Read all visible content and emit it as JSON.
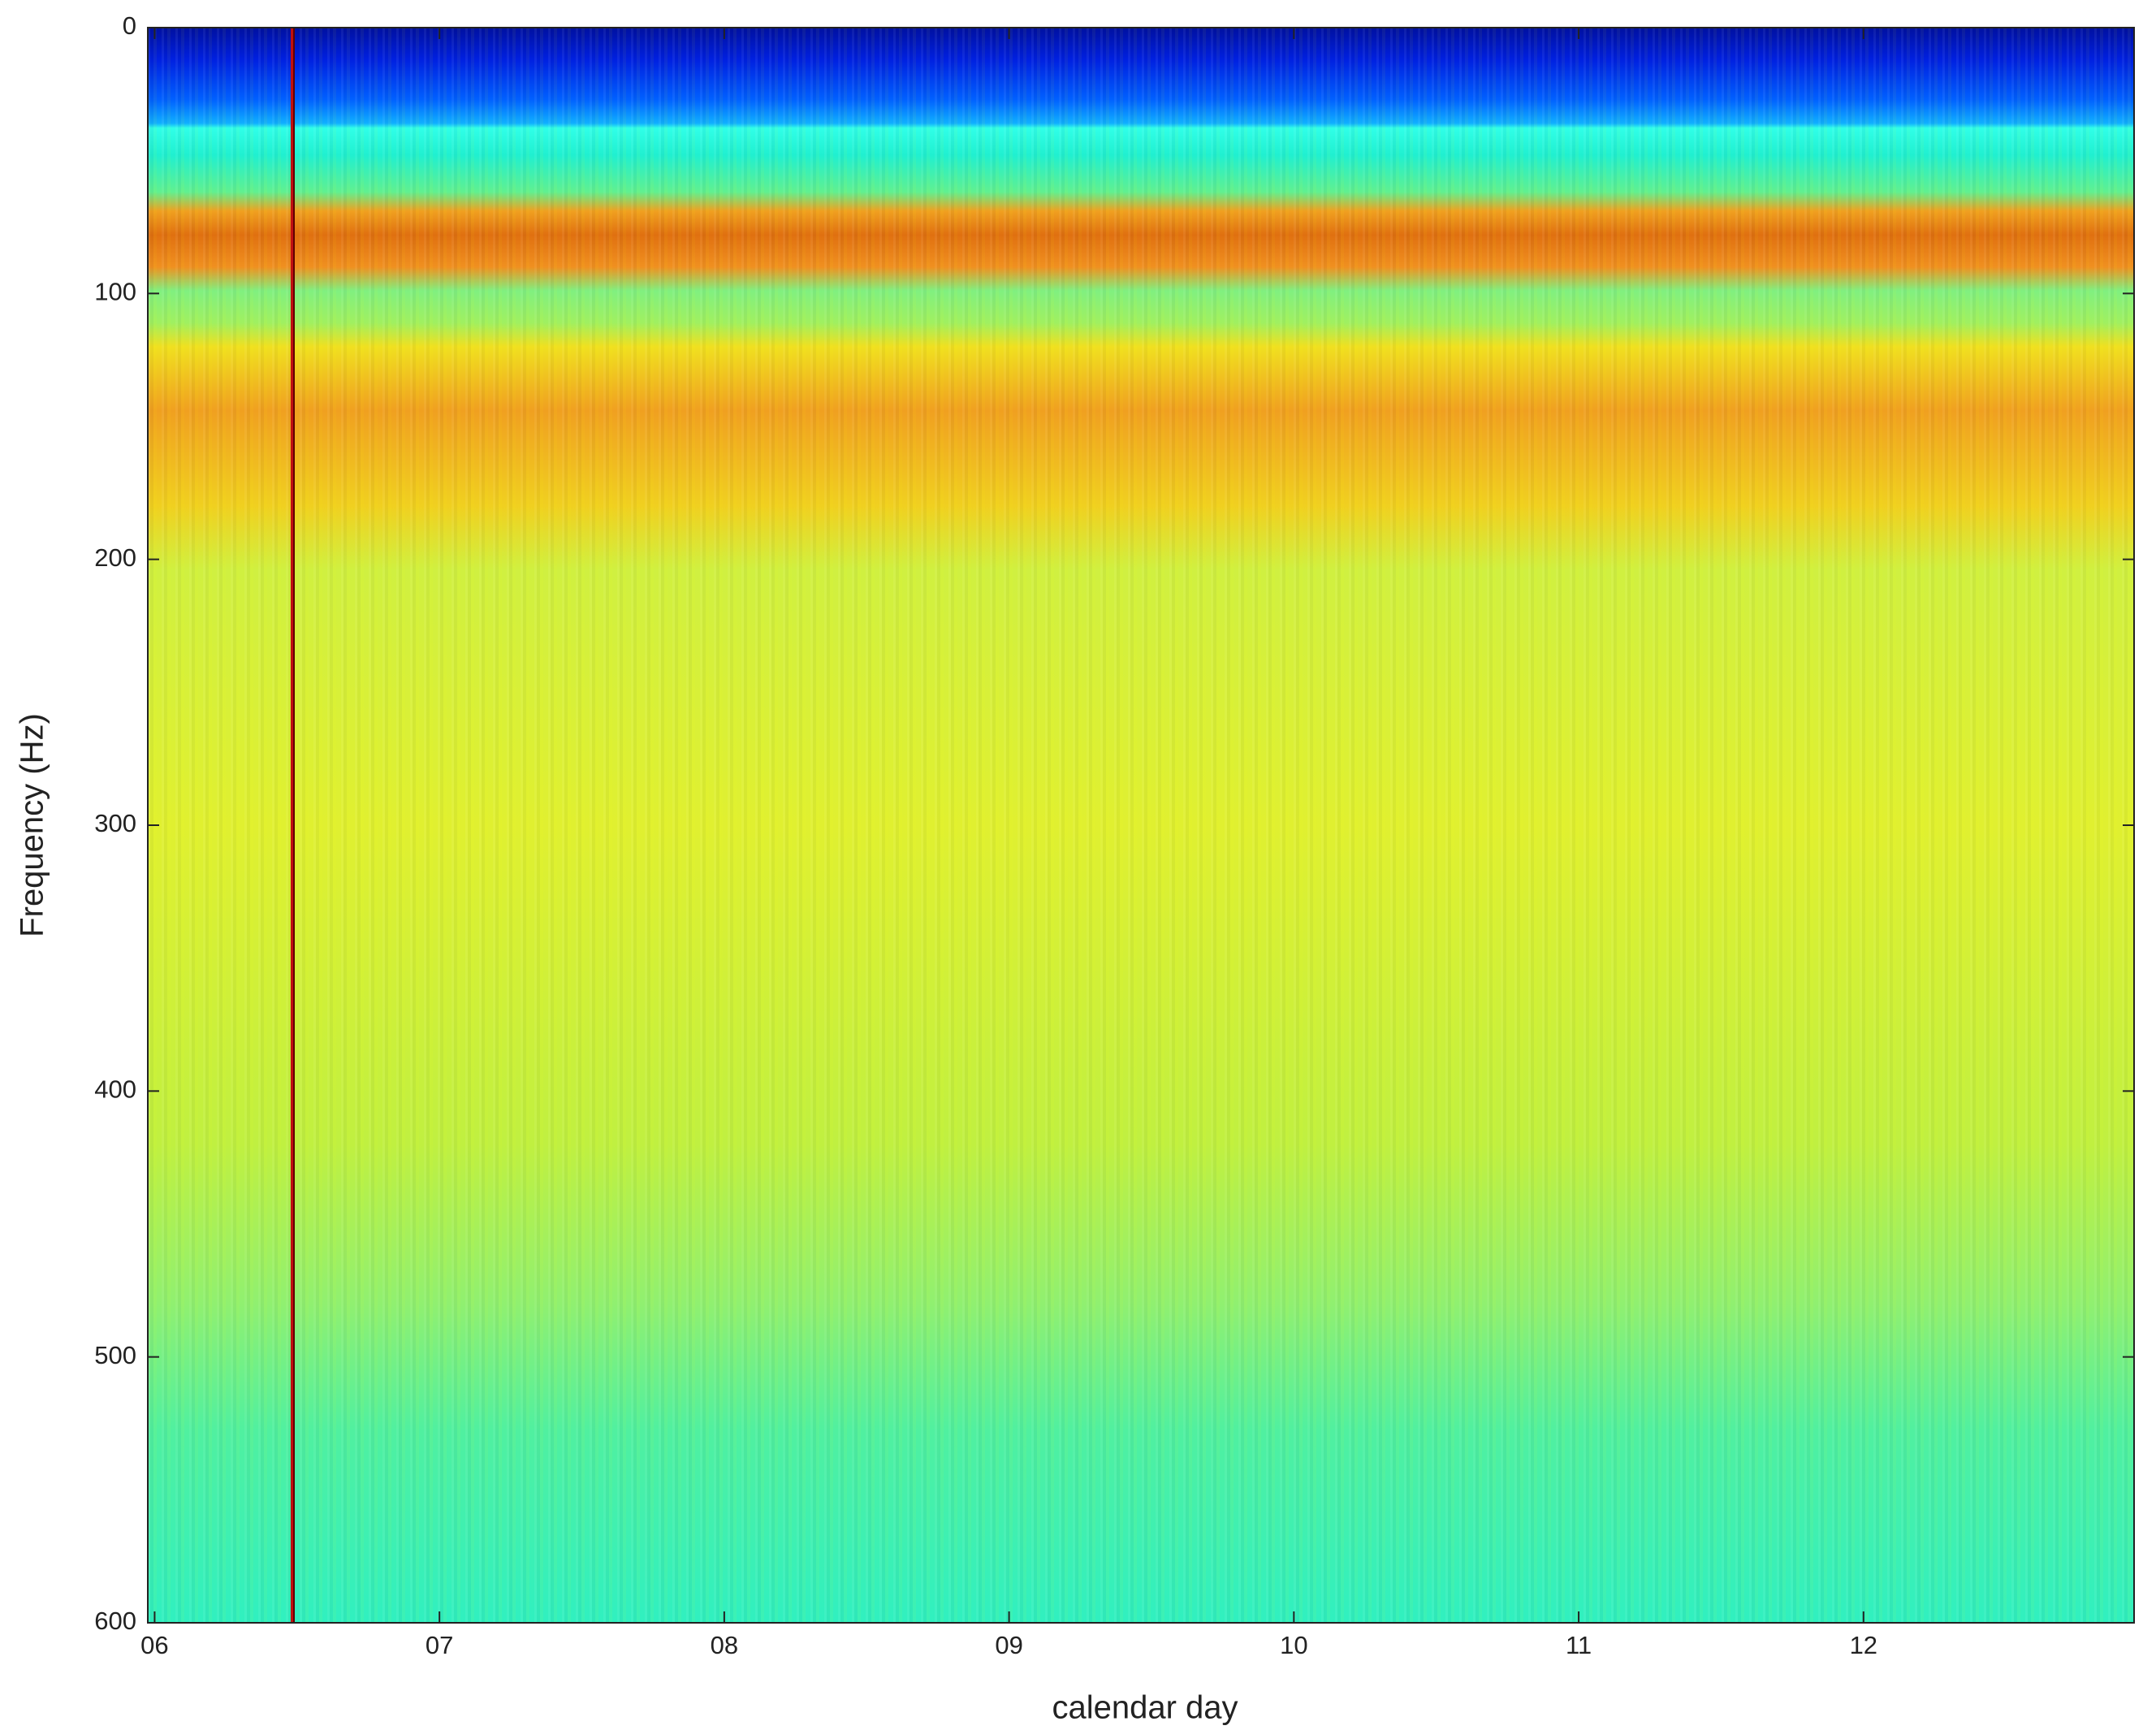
{
  "chart_data": {
    "type": "heatmap",
    "colormap": "jet",
    "xlabel": "calendar day",
    "ylabel": "Frequency (Hz)",
    "xlim": [
      5.976,
      12.95
    ],
    "xticks": [
      {
        "value": 6,
        "label": "06"
      },
      {
        "value": 7,
        "label": "07"
      },
      {
        "value": 8,
        "label": "08"
      },
      {
        "value": 9,
        "label": "09"
      },
      {
        "value": 10,
        "label": "10"
      },
      {
        "value": 11,
        "label": "11"
      },
      {
        "value": 12,
        "label": "12"
      }
    ],
    "ylim": [
      0,
      600
    ],
    "y_reversed": true,
    "yticks": [
      0,
      100,
      200,
      300,
      400,
      500,
      600
    ]
  }
}
